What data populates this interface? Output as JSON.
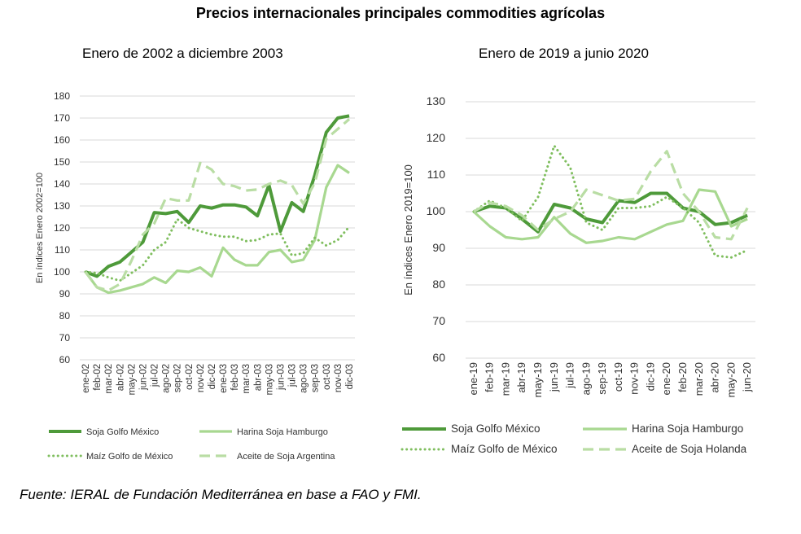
{
  "title": "Precios internacionales principales commodities agrícolas",
  "source": "Fuente: IERAL de Fundación Mediterránea en base a FAO y FMI.",
  "colors": {
    "soja": "#4e9a3a",
    "harina": "#a8d890",
    "maiz": "#7fbe5e",
    "aceite": "#b9dda4"
  },
  "chart_data": [
    {
      "type": "line",
      "title": "Enero de 2002 a diciembre 2003",
      "ylabel": "En índices Enero 2002=100",
      "ylim": [
        60,
        180
      ],
      "yticks": [
        60,
        70,
        80,
        90,
        100,
        110,
        120,
        130,
        140,
        150,
        160,
        170,
        180
      ],
      "grid": true,
      "legend": "bottom",
      "categories": [
        "ene-02",
        "feb-02",
        "mar-02",
        "abr-02",
        "may-02",
        "jun-02",
        "jul-02",
        "ago-02",
        "sep-02",
        "oct-02",
        "nov-02",
        "dic-02",
        "ene-03",
        "feb-03",
        "mar-03",
        "abr-03",
        "may-03",
        "jun-03",
        "jul-03",
        "ago-03",
        "sep-03",
        "oct-03",
        "nov-03",
        "dic-03"
      ],
      "series": [
        {
          "name": "Soja Golfo México",
          "style": "solid-thick",
          "color": "#4e9a3a",
          "values": [
            100,
            98,
            102.5,
            104.5,
            109,
            113.5,
            127,
            126.5,
            127.5,
            122.5,
            130,
            129,
            130.5,
            130.5,
            129.5,
            125.5,
            139.5,
            118.5,
            131.5,
            127.5,
            144,
            163.5,
            170,
            171
          ]
        },
        {
          "name": "Harina Soja Hamburgo",
          "style": "solid",
          "color": "#a8d890",
          "values": [
            100,
            93,
            90.5,
            91.5,
            93,
            94.5,
            97.5,
            95,
            100.5,
            100,
            102,
            98,
            111,
            105.5,
            103,
            103,
            109,
            110,
            104.5,
            105.5,
            114.5,
            138.5,
            148.5,
            145
          ]
        },
        {
          "name": "Maíz Golfo de México",
          "style": "dotted",
          "color": "#7fbe5e",
          "values": [
            100,
            99.5,
            97.5,
            96,
            99.5,
            103,
            110,
            113.5,
            124,
            120,
            118.5,
            117,
            116,
            116,
            114,
            114.5,
            117,
            117.5,
            107.5,
            108.5,
            115.5,
            112,
            114.5,
            120.5
          ]
        },
        {
          "name": "Aceite de Soja Argentina",
          "style": "dashed",
          "color": "#b9dda4",
          "values": [
            100,
            93,
            91.5,
            94.5,
            105,
            117,
            122,
            133.5,
            132.5,
            132.5,
            149.5,
            146.5,
            140,
            139,
            137,
            137.5,
            140,
            141.5,
            139.5,
            131,
            140.5,
            160.5,
            165,
            169.5
          ]
        }
      ]
    },
    {
      "type": "line",
      "title": "Enero de 2019 a junio 2020",
      "ylabel": "En índices Enero 2019=100",
      "ylim": [
        60,
        130
      ],
      "yticks": [
        60,
        70,
        80,
        90,
        100,
        110,
        120,
        130
      ],
      "grid": true,
      "legend": "bottom",
      "categories": [
        "ene-19",
        "feb-19",
        "mar-19",
        "abr-19",
        "may-19",
        "jun-19",
        "jul-19",
        "ago-19",
        "sep-19",
        "oct-19",
        "nov-19",
        "dic-19",
        "ene-20",
        "feb-20",
        "mar-20",
        "abr-20",
        "may-20",
        "jun-20"
      ],
      "series": [
        {
          "name": "Soja Golfo México",
          "style": "solid-thick",
          "color": "#4e9a3a",
          "values": [
            100,
            101.5,
            101,
            98,
            94.5,
            102,
            101,
            98,
            97,
            103,
            102.5,
            105,
            105,
            101,
            100,
            96.5,
            97,
            99
          ]
        },
        {
          "name": "Harina Soja Hamburgo",
          "style": "solid",
          "color": "#a8d890",
          "values": [
            100,
            96,
            93,
            92.5,
            93,
            98.5,
            94,
            91.5,
            92,
            93,
            92.5,
            94.5,
            96.5,
            97.5,
            106,
            105.5,
            96,
            98
          ]
        },
        {
          "name": "Maíz Golfo de México",
          "style": "dotted",
          "color": "#7fbe5e",
          "values": [
            100,
            103,
            101,
            97.5,
            104,
            118,
            112,
            97,
            95,
            101,
            101,
            101.5,
            104,
            101,
            97,
            88,
            87.5,
            89.5
          ]
        },
        {
          "name": "Aceite de Soja Holanda",
          "style": "dashed",
          "color": "#b9dda4",
          "values": [
            100,
            102.5,
            101.5,
            99,
            95,
            98,
            100,
            106,
            104.5,
            103,
            103.5,
            111,
            116.5,
            105,
            100,
            93,
            92.5,
            101
          ]
        }
      ]
    }
  ]
}
